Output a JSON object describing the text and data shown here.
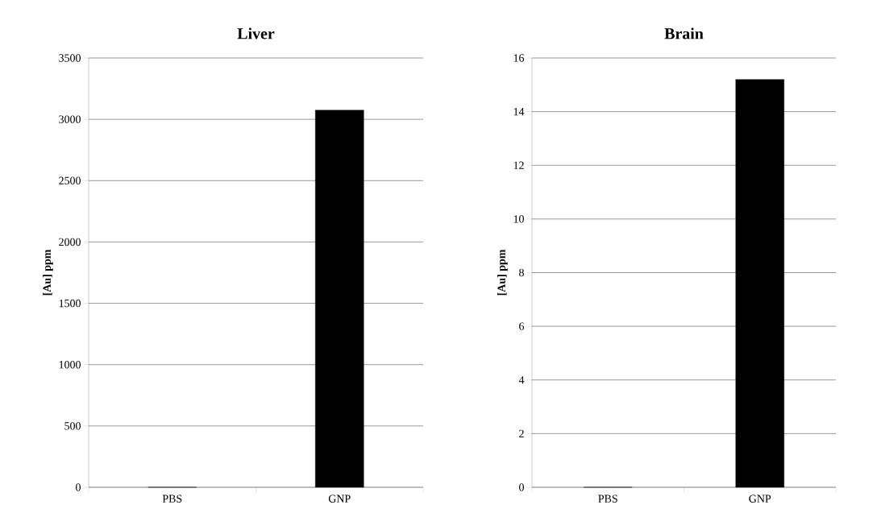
{
  "chart_data": [
    {
      "type": "bar",
      "title": "Liver",
      "ylabel": "[Au] ppm",
      "categories": [
        "PBS",
        "GNP"
      ],
      "values": [
        0,
        3075
      ],
      "color": "#000000",
      "ylim": [
        0,
        3500
      ],
      "yticks": [
        0,
        500,
        1000,
        1500,
        2000,
        2500,
        3000,
        3500
      ],
      "grid": "y"
    },
    {
      "type": "bar",
      "title": "Brain",
      "ylabel": "[Au] ppm",
      "categories": [
        "PBS",
        "GNP"
      ],
      "values": [
        0,
        15.2
      ],
      "color": "#000000",
      "ylim": [
        0,
        16
      ],
      "yticks": [
        0,
        2,
        4,
        6,
        8,
        10,
        12,
        14,
        16
      ],
      "grid": "y"
    }
  ]
}
